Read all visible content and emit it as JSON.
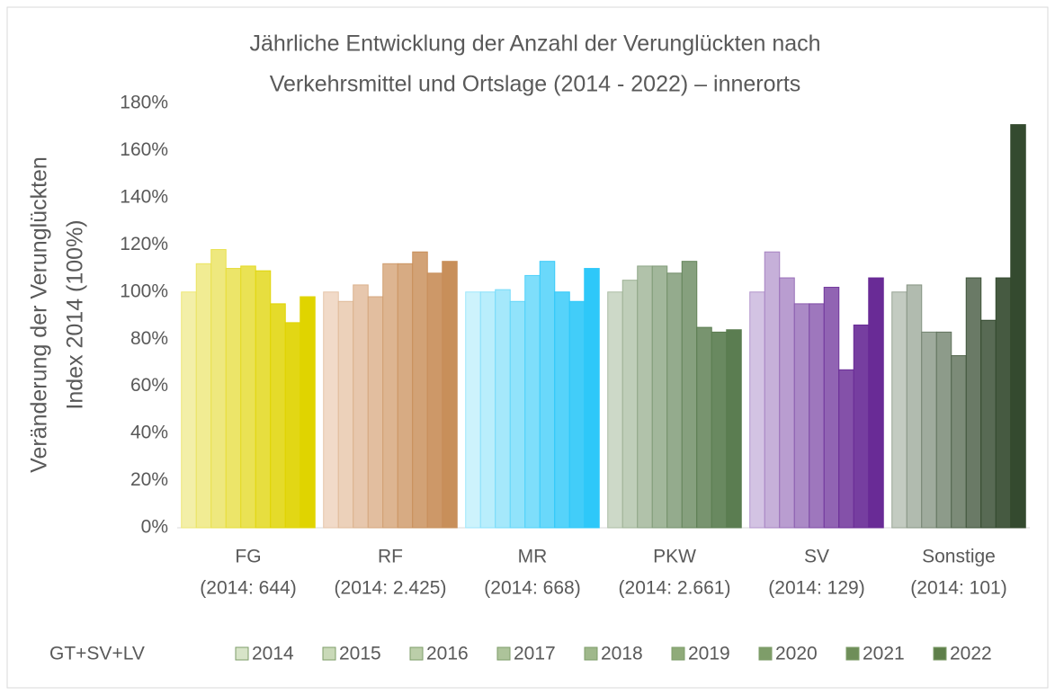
{
  "chart_data": {
    "type": "bar",
    "title": [
      "Jährliche Entwicklung der Anzahl der Verunglückten nach",
      "Verkehrsmittel und Ortslage (2014 - 2022) – innerorts"
    ],
    "y_label": [
      "Veränderung der Verunglückten",
      "Index 2014 (100%)"
    ],
    "legend_title": "GT+SV+LV",
    "categories": [
      [
        "FG",
        "(2014: 644)"
      ],
      [
        "RF",
        "(2014: 2.425)"
      ],
      [
        "MR",
        "(2014: 668)"
      ],
      [
        "PKW",
        "(2014: 2.661)"
      ],
      [
        "SV",
        "(2014: 129)"
      ],
      [
        "Sonstige",
        "(2014: 101)"
      ]
    ],
    "bar_colors": [
      [
        "#f3efa8",
        "#e0d400"
      ],
      [
        "#f1dac8",
        "#c88f5a"
      ],
      [
        "#cdf3fc",
        "#2ec8f9"
      ],
      [
        "#cdd9c8",
        "#5b7d51"
      ],
      [
        "#d3c3e3",
        "#692b96"
      ],
      [
        "#c3cbc1",
        "#344a2f"
      ]
    ],
    "series": [
      {
        "name": "2014",
        "color": "#d7e4c8",
        "values": [
          100,
          100,
          100,
          100,
          100,
          100
        ]
      },
      {
        "name": "2015",
        "color": "#c9d9b8",
        "values": [
          112,
          96,
          100,
          105,
          117,
          103
        ]
      },
      {
        "name": "2016",
        "color": "#bbcea9",
        "values": [
          118,
          103,
          101,
          111,
          106,
          83
        ]
      },
      {
        "name": "2017",
        "color": "#adc39a",
        "values": [
          110,
          98,
          96,
          111,
          95,
          83
        ]
      },
      {
        "name": "2018",
        "color": "#9fb88b",
        "values": [
          111,
          112,
          107,
          108,
          95,
          73
        ]
      },
      {
        "name": "2019",
        "color": "#8fab7a",
        "values": [
          109,
          112,
          113,
          113,
          102,
          106
        ]
      },
      {
        "name": "2020",
        "color": "#7e9d69",
        "values": [
          95,
          117,
          100,
          85,
          67,
          88
        ]
      },
      {
        "name": "2021",
        "color": "#6e8e59",
        "values": [
          87,
          108,
          96,
          83,
          86,
          106
        ]
      },
      {
        "name": "2022",
        "color": "#5e7f4a",
        "values": [
          98,
          113,
          110,
          84,
          106,
          171
        ]
      }
    ],
    "ylim": [
      0,
      180
    ],
    "yticks": [
      {
        "value": 0,
        "label": "0%"
      },
      {
        "value": 20,
        "label": "20%"
      },
      {
        "value": 40,
        "label": "40%"
      },
      {
        "value": 60,
        "label": "60%"
      },
      {
        "value": 80,
        "label": "80%"
      },
      {
        "value": 100,
        "label": "100%"
      },
      {
        "value": 120,
        "label": "120%"
      },
      {
        "value": 140,
        "label": "140%"
      },
      {
        "value": 160,
        "label": "160%"
      },
      {
        "value": 180,
        "label": "180%"
      }
    ],
    "grid": false
  }
}
